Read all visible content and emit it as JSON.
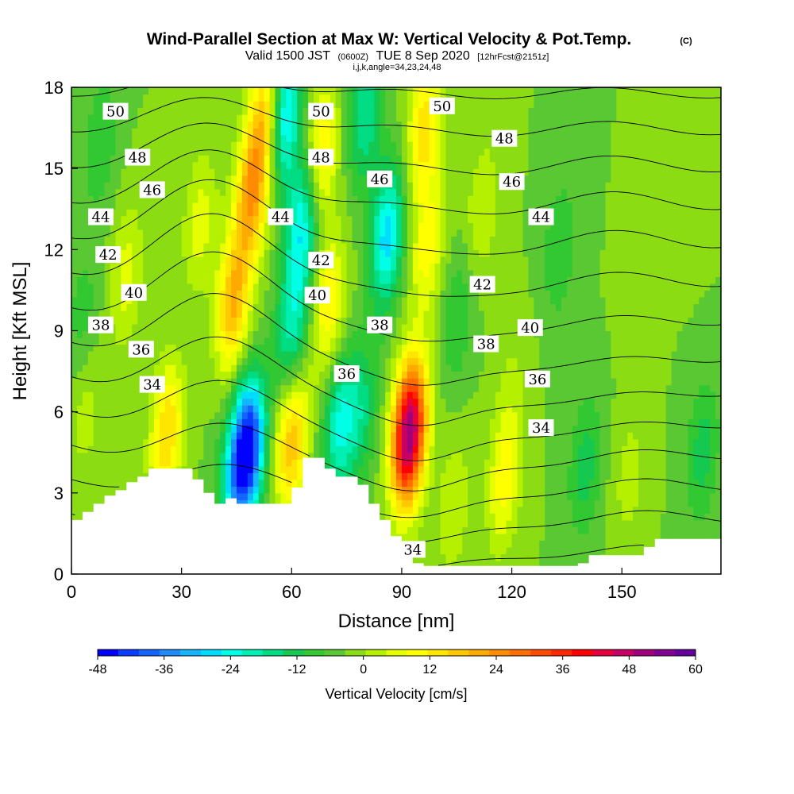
{
  "title": {
    "main": "Wind-Parallel Section at Max W: Vertical Velocity & Pot.Temp.",
    "main_suffix": "(C)",
    "sub_prefix": "Valid 1500 JST",
    "sub_zulu": "(0600Z)",
    "sub_date": "TUE 8 Sep 2020",
    "sub_fcst": "[12hrFcst@2151z]",
    "line3": "i,j,k,angle=34,23,24,48"
  },
  "chart_data": {
    "type": "heatmap",
    "xlabel": "Distance [nm]",
    "ylabel": "Height [Kft MSL]",
    "xlim": [
      0,
      177
    ],
    "ylim": [
      0,
      18
    ],
    "x_ticks": [
      "0",
      "30",
      "60",
      "90",
      "120",
      "150"
    ],
    "x_tick_values": [
      0,
      30,
      60,
      90,
      120,
      150
    ],
    "y_ticks": [
      "0",
      "3",
      "6",
      "9",
      "12",
      "15",
      "18"
    ],
    "y_tick_values": [
      0,
      3,
      6,
      9,
      12,
      15,
      18
    ],
    "colorbar": {
      "title": "Vertical Velocity [cm/s]",
      "min": -48,
      "max": 60,
      "step": 4,
      "tick_labels": [
        "-48",
        "-36",
        "-24",
        "-12",
        "0",
        "12",
        "24",
        "36",
        "48",
        "60"
      ],
      "tick_values": [
        -48,
        -36,
        -24,
        -12,
        0,
        12,
        24,
        36,
        48,
        60
      ],
      "colors": [
        "#0000ff",
        "#0a3cff",
        "#1464ff",
        "#1e8cff",
        "#14b4ff",
        "#00dcff",
        "#00ffe6",
        "#00f0b4",
        "#00dc82",
        "#14c850",
        "#32c832",
        "#5ac832",
        "#8cdc14",
        "#b4f000",
        "#e6ff00",
        "#ffff00",
        "#ffe600",
        "#ffc800",
        "#ffaa00",
        "#ff8c00",
        "#ff6e00",
        "#ff4b00",
        "#ff2800",
        "#ff0000",
        "#e6003c",
        "#c80064",
        "#a0007d",
        "#820091",
        "#64009b"
      ]
    },
    "cores": [
      {
        "x": 26,
        "y": 5.2,
        "w": 20
      },
      {
        "x": 15,
        "y": 11.0,
        "w": 10
      },
      {
        "x": 8,
        "y": 16.0,
        "w": -8
      },
      {
        "x": 35,
        "y": 13.0,
        "w": 10
      },
      {
        "x": 48,
        "y": 4.6,
        "w": -48
      },
      {
        "x": 44,
        "y": 3.4,
        "w": -14
      },
      {
        "x": 44,
        "y": 10.0,
        "w": 24
      },
      {
        "x": 49,
        "y": 14.0,
        "w": 26
      },
      {
        "x": 53,
        "y": 17.0,
        "w": 22
      },
      {
        "x": 60,
        "y": 9.0,
        "w": -18
      },
      {
        "x": 63,
        "y": 13.0,
        "w": -24
      },
      {
        "x": 58,
        "y": 17.0,
        "w": -28
      },
      {
        "x": 60,
        "y": 5.0,
        "w": 24
      },
      {
        "x": 73,
        "y": 5.5,
        "w": -20
      },
      {
        "x": 70,
        "y": 10.0,
        "w": 16
      },
      {
        "x": 68,
        "y": 15.5,
        "w": 18
      },
      {
        "x": 86,
        "y": 12.5,
        "w": -26
      },
      {
        "x": 80,
        "y": 17.0,
        "w": -16
      },
      {
        "x": 79,
        "y": 6.0,
        "w": -12
      },
      {
        "x": 92,
        "y": 5.2,
        "w": 60
      },
      {
        "x": 97,
        "y": 12.0,
        "w": 14
      },
      {
        "x": 96,
        "y": 16.5,
        "w": 18
      },
      {
        "x": 104,
        "y": 2.5,
        "w": 8
      },
      {
        "x": 118,
        "y": 3.5,
        "w": 14
      },
      {
        "x": 105,
        "y": 9.5,
        "w": -8
      },
      {
        "x": 112,
        "y": 13.5,
        "w": 8
      },
      {
        "x": 120,
        "y": 7.0,
        "w": 4
      },
      {
        "x": 140,
        "y": 4.0,
        "w": -10
      },
      {
        "x": 133,
        "y": 12.0,
        "w": -8
      },
      {
        "x": 152,
        "y": 3.5,
        "w": 6
      },
      {
        "x": 155,
        "y": 10.5,
        "w": 4
      },
      {
        "x": 172,
        "y": 4.5,
        "w": -10
      },
      {
        "x": 170,
        "y": 15.0,
        "w": 4
      },
      {
        "x": 4,
        "y": 6.0,
        "w": 6
      },
      {
        "x": 3,
        "y": 9.5,
        "w": -6
      }
    ],
    "band_tilt": 0.42,
    "terrain": {
      "x": [
        0,
        3,
        6,
        9,
        12,
        15,
        18,
        21,
        24,
        27,
        30,
        33,
        36,
        39,
        42,
        45,
        48,
        51,
        54,
        57,
        60,
        63,
        66,
        69,
        72,
        75,
        78,
        81,
        84,
        87,
        90,
        93,
        96,
        99,
        102,
        105,
        108,
        111,
        114,
        117,
        120,
        123,
        126,
        129,
        132,
        135,
        138,
        141,
        144,
        147,
        150,
        153,
        156,
        159,
        162,
        165,
        168,
        171,
        174,
        177
      ],
      "y": [
        2.0,
        2.3,
        2.6,
        2.9,
        3.1,
        3.4,
        3.6,
        3.9,
        3.9,
        3.9,
        3.9,
        3.5,
        3.0,
        2.6,
        2.8,
        2.6,
        2.6,
        2.6,
        2.6,
        2.6,
        3.2,
        4.3,
        4.3,
        3.9,
        3.6,
        3.6,
        3.3,
        2.6,
        2.0,
        1.4,
        0.9,
        0.4,
        0.3,
        0.3,
        0.3,
        0.3,
        0.3,
        0.3,
        0.3,
        0.3,
        0.3,
        0.3,
        0.3,
        0.3,
        0.3,
        0.3,
        0.4,
        0.7,
        0.7,
        0.7,
        0.7,
        0.7,
        1.0,
        1.3,
        1.3,
        1.3,
        1.3,
        1.3,
        1.3,
        1.3
      ]
    },
    "isentropes": [
      {
        "theta": 34,
        "labels": [
          [
            22,
            7.0
          ],
          [
            93,
            0.9
          ],
          [
            128,
            5.4
          ]
        ]
      },
      {
        "theta": 36,
        "labels": [
          [
            19,
            8.3
          ],
          [
            75,
            7.4
          ],
          [
            127,
            7.2
          ]
        ]
      },
      {
        "theta": 38,
        "labels": [
          [
            8,
            9.2
          ],
          [
            84,
            9.2
          ],
          [
            113,
            8.5
          ]
        ]
      },
      {
        "theta": 40,
        "labels": [
          [
            17,
            10.4
          ],
          [
            67,
            10.3
          ],
          [
            125,
            9.1
          ]
        ]
      },
      {
        "theta": 42,
        "labels": [
          [
            10,
            11.8
          ],
          [
            68,
            11.6
          ],
          [
            112,
            10.7
          ]
        ]
      },
      {
        "theta": 44,
        "labels": [
          [
            8,
            13.2
          ],
          [
            57,
            13.2
          ],
          [
            128,
            13.2
          ]
        ]
      },
      {
        "theta": 46,
        "labels": [
          [
            22,
            14.2
          ],
          [
            84,
            14.6
          ],
          [
            120,
            14.5
          ]
        ]
      },
      {
        "theta": 48,
        "labels": [
          [
            18,
            15.4
          ],
          [
            68,
            15.4
          ],
          [
            118,
            16.1
          ]
        ]
      },
      {
        "theta": 50,
        "labels": [
          [
            12,
            17.1
          ],
          [
            68,
            17.1
          ],
          [
            101,
            17.3
          ]
        ]
      }
    ]
  }
}
